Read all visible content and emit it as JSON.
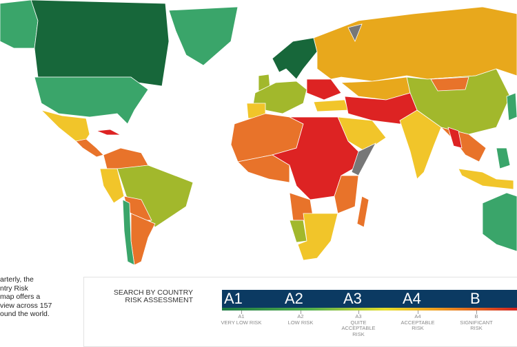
{
  "intro_text": [
    "arterly, the",
    "ntry Risk",
    "map offers a",
    "view across 157",
    "ound the world."
  ],
  "legend": {
    "search_label": "SEARCH BY COUNTRY RISK ASSESSMENT",
    "ratings": [
      {
        "code": "A1",
        "desc": "VERY LOW RISK"
      },
      {
        "code": "A2",
        "desc": "LOW RISK"
      },
      {
        "code": "A3",
        "desc": "QUITE ACCEPTABLE RISK"
      },
      {
        "code": "A4",
        "desc": "ACCEPTABLE RISK"
      },
      {
        "code": "B",
        "desc": "SIGNIFICANT RISK"
      }
    ]
  },
  "colors": {
    "A1": "#17673a",
    "A2": "#3aa56a",
    "A3": "#a2b82c",
    "A4": "#f1c52a",
    "B": "#e8a81c",
    "C": "#e8732a",
    "D": "#dd2323",
    "no_data": "#777777",
    "bar": "#0b3a62"
  }
}
